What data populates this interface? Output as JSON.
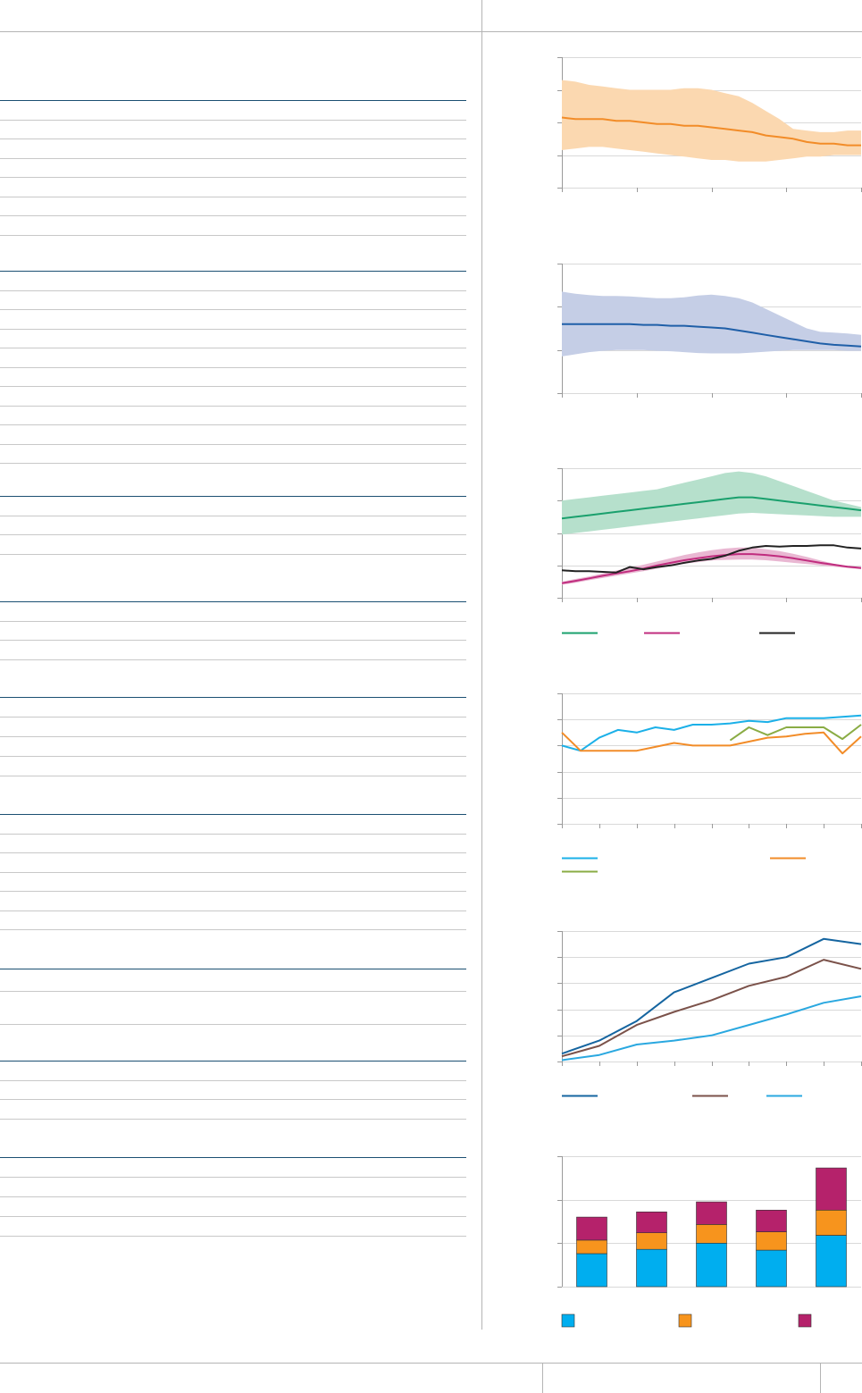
{
  "page": {
    "header": "",
    "footer": {
      "left": "",
      "center": "",
      "page_number": ""
    }
  },
  "table": {
    "blocks": [
      {
        "title": "",
        "rows": 7
      },
      {
        "title": "",
        "rows": 10
      },
      {
        "title": "",
        "rows": 3
      },
      {
        "title": "",
        "rows": 3
      },
      {
        "title": "",
        "rows": 4
      },
      {
        "title": "",
        "rows": 6
      },
      {
        "title": "",
        "rows": 1
      },
      {
        "title": "",
        "rows": 3
      },
      {
        "title": "",
        "rows": 4
      }
    ]
  },
  "colors": {
    "rule_dark": "#1b4f72",
    "rule_light": "#c8c8c8",
    "divider": "#b4b4b4",
    "orange": "#f28c28",
    "orange_band": "#fbd8b0",
    "navy": "#1f5fa8",
    "navy_band": "#c5cee6",
    "green": "#1aa06d",
    "green_band": "#b6e0cc",
    "magenta": "#c02c7e",
    "magenta_band": "#e9b7d2",
    "black": "#222222",
    "cyan": "#1bb0e8",
    "olive": "#8aac44",
    "dark_blue": "#1565a0",
    "brown": "#7b524a",
    "light_blue": "#2aa8e0",
    "bar_blue": "#00aeef",
    "bar_orange": "#f7941d",
    "bar_magenta": "#b5226b"
  },
  "chart_data": [
    {
      "type": "area",
      "title": "",
      "xlim": [
        0,
        22
      ],
      "ylim": [
        0,
        4
      ],
      "x_ticks": 5,
      "y_ticks": 5,
      "series": [
        {
          "color_key": "orange",
          "band_key": "orange_band",
          "values": [
            2.15,
            2.1,
            2.1,
            2.1,
            2.05,
            2.05,
            2.0,
            1.95,
            1.95,
            1.9,
            1.9,
            1.85,
            1.8,
            1.75,
            1.7,
            1.6,
            1.55,
            1.5,
            1.4,
            1.35,
            1.35,
            1.3,
            1.3
          ],
          "upper": [
            3.3,
            3.25,
            3.15,
            3.1,
            3.05,
            3.0,
            3.0,
            3.0,
            3.0,
            3.05,
            3.05,
            3.0,
            2.9,
            2.8,
            2.6,
            2.35,
            2.1,
            1.8,
            1.75,
            1.7,
            1.7,
            1.75,
            1.75
          ],
          "lower": [
            1.15,
            1.2,
            1.25,
            1.25,
            1.2,
            1.15,
            1.1,
            1.05,
            1.0,
            0.95,
            0.9,
            0.85,
            0.85,
            0.8,
            0.8,
            0.8,
            0.85,
            0.9,
            0.95,
            0.95,
            1.0,
            1.0,
            1.0
          ]
        }
      ]
    },
    {
      "type": "area",
      "title": "",
      "xlim": [
        0,
        22
      ],
      "ylim": [
        0,
        3
      ],
      "x_ticks": 5,
      "y_ticks": 4,
      "series": [
        {
          "color_key": "navy",
          "band_key": "navy_band",
          "values": [
            1.6,
            1.6,
            1.6,
            1.6,
            1.6,
            1.6,
            1.58,
            1.58,
            1.56,
            1.56,
            1.54,
            1.52,
            1.5,
            1.45,
            1.4,
            1.35,
            1.3,
            1.25,
            1.2,
            1.15,
            1.12,
            1.1,
            1.08
          ],
          "upper": [
            2.35,
            2.3,
            2.27,
            2.25,
            2.25,
            2.24,
            2.22,
            2.2,
            2.2,
            2.22,
            2.26,
            2.28,
            2.25,
            2.2,
            2.1,
            1.95,
            1.8,
            1.65,
            1.5,
            1.42,
            1.4,
            1.38,
            1.35
          ],
          "lower": [
            0.85,
            0.9,
            0.95,
            0.98,
            1.0,
            1.0,
            1.0,
            0.98,
            0.97,
            0.95,
            0.93,
            0.92,
            0.92,
            0.92,
            0.94,
            0.96,
            0.98,
            1.0,
            1.0,
            1.0,
            1.0,
            0.98,
            0.98
          ]
        }
      ]
    },
    {
      "type": "line",
      "title": "",
      "xlim": [
        0,
        22
      ],
      "ylim": [
        0,
        4
      ],
      "x_ticks": 5,
      "y_ticks": 5,
      "legend": [
        {
          "label": "",
          "color_key": "green"
        },
        {
          "label": "",
          "color_key": "magenta"
        },
        {
          "label": "",
          "color_key": "black"
        }
      ],
      "series": [
        {
          "color_key": "green",
          "band_key": "green_band",
          "values": [
            2.45,
            2.5,
            2.55,
            2.6,
            2.65,
            2.7,
            2.75,
            2.8,
            2.85,
            2.9,
            2.95,
            3.0,
            3.05,
            3.1,
            3.1,
            3.05,
            3.0,
            2.95,
            2.9,
            2.85,
            2.8,
            2.75,
            2.7
          ],
          "upper": [
            3.0,
            3.05,
            3.1,
            3.15,
            3.2,
            3.25,
            3.3,
            3.35,
            3.45,
            3.55,
            3.65,
            3.75,
            3.85,
            3.9,
            3.85,
            3.75,
            3.6,
            3.45,
            3.3,
            3.15,
            3.0,
            2.9,
            2.8
          ],
          "lower": [
            1.95,
            2.0,
            2.05,
            2.1,
            2.15,
            2.2,
            2.25,
            2.3,
            2.35,
            2.4,
            2.45,
            2.5,
            2.55,
            2.6,
            2.62,
            2.6,
            2.58,
            2.56,
            2.54,
            2.52,
            2.5,
            2.5,
            2.5
          ]
        },
        {
          "color_key": "magenta",
          "band_key": "magenta_band",
          "values": [
            0.45,
            0.52,
            0.6,
            0.68,
            0.75,
            0.82,
            0.9,
            1.0,
            1.08,
            1.16,
            1.22,
            1.28,
            1.32,
            1.35,
            1.35,
            1.32,
            1.28,
            1.22,
            1.15,
            1.08,
            1.02,
            0.96,
            0.92
          ],
          "upper": [
            0.5,
            0.58,
            0.66,
            0.75,
            0.84,
            0.93,
            1.02,
            1.12,
            1.22,
            1.32,
            1.4,
            1.47,
            1.52,
            1.55,
            1.55,
            1.5,
            1.44,
            1.36,
            1.26,
            1.15,
            1.05,
            0.98,
            0.93
          ],
          "lower": [
            0.4,
            0.46,
            0.54,
            0.61,
            0.68,
            0.75,
            0.82,
            0.9,
            0.98,
            1.05,
            1.1,
            1.15,
            1.17,
            1.18,
            1.18,
            1.16,
            1.12,
            1.08,
            1.04,
            1.0,
            0.96,
            0.92,
            0.88
          ]
        },
        {
          "color_key": "black",
          "values": [
            0.85,
            0.82,
            0.82,
            0.8,
            0.78,
            0.95,
            0.88,
            0.95,
            1.0,
            1.08,
            1.15,
            1.2,
            1.3,
            1.45,
            1.55,
            1.6,
            1.58,
            1.6,
            1.6,
            1.62,
            1.62,
            1.55,
            1.52
          ]
        }
      ]
    },
    {
      "type": "line",
      "title": "",
      "x": [
        0,
        1,
        2,
        3,
        4,
        5,
        6,
        7,
        8,
        9,
        10,
        11,
        12,
        13,
        14,
        15,
        16
      ],
      "xlim": [
        0,
        16
      ],
      "ylim": [
        0,
        5
      ],
      "x_ticks": 9,
      "y_ticks": 6,
      "legend": [
        {
          "label": "",
          "color_key": "cyan"
        },
        {
          "label": "",
          "color_key": "orange"
        },
        {
          "label": "",
          "color_key": "olive"
        }
      ],
      "series": [
        {
          "color_key": "cyan",
          "values": [
            3.0,
            2.8,
            3.3,
            3.6,
            3.5,
            3.7,
            3.6,
            3.8,
            3.8,
            3.85,
            3.95,
            3.9,
            4.05,
            4.05,
            4.05,
            4.1,
            4.15
          ]
        },
        {
          "color_key": "orange",
          "values": [
            3.5,
            2.8,
            2.8,
            2.8,
            2.8,
            2.95,
            3.1,
            3.0,
            3.0,
            3.0,
            3.15,
            3.3,
            3.35,
            3.45,
            3.5,
            2.7,
            3.35
          ]
        },
        {
          "color_key": "olive",
          "x": [
            9,
            10,
            11,
            12,
            13,
            14,
            15,
            16
          ],
          "values": [
            3.2,
            3.7,
            3.4,
            3.7,
            3.7,
            3.7,
            3.25,
            3.8
          ]
        }
      ]
    },
    {
      "type": "line",
      "title": "",
      "x": [
        0,
        1,
        2,
        3,
        4,
        5,
        6,
        7,
        8
      ],
      "xlim": [
        0,
        8
      ],
      "ylim": [
        0,
        5
      ],
      "x_ticks": 9,
      "y_ticks": 6,
      "legend": [
        {
          "label": "",
          "color_key": "dark_blue"
        },
        {
          "label": "",
          "color_key": "brown"
        },
        {
          "label": "",
          "color_key": "light_blue"
        }
      ],
      "series": [
        {
          "color_key": "dark_blue",
          "values": [
            0.3,
            0.8,
            1.55,
            2.65,
            3.2,
            3.75,
            4.0,
            4.7,
            4.5
          ]
        },
        {
          "color_key": "brown",
          "values": [
            0.2,
            0.6,
            1.4,
            1.9,
            2.35,
            2.9,
            3.25,
            3.9,
            3.55
          ]
        },
        {
          "color_key": "light_blue",
          "values": [
            0.05,
            0.25,
            0.65,
            0.8,
            1.0,
            1.4,
            1.8,
            2.25,
            2.5
          ]
        }
      ]
    },
    {
      "type": "bar",
      "stacked": true,
      "title": "",
      "categories": [
        "",
        "",
        "",
        "",
        ""
      ],
      "ylim": [
        0,
        3
      ],
      "y_ticks": 4,
      "legend": [
        {
          "label": "",
          "color_key": "bar_blue"
        },
        {
          "label": "",
          "color_key": "bar_orange"
        },
        {
          "label": "",
          "color_key": "bar_magenta"
        }
      ],
      "series": [
        {
          "color_key": "bar_blue",
          "values": [
            0.76,
            0.86,
            1.0,
            0.84,
            1.18
          ]
        },
        {
          "color_key": "bar_orange",
          "values": [
            0.31,
            0.38,
            0.43,
            0.42,
            0.58
          ]
        },
        {
          "color_key": "bar_magenta",
          "values": [
            0.53,
            0.48,
            0.52,
            0.5,
            0.97
          ]
        }
      ]
    }
  ]
}
